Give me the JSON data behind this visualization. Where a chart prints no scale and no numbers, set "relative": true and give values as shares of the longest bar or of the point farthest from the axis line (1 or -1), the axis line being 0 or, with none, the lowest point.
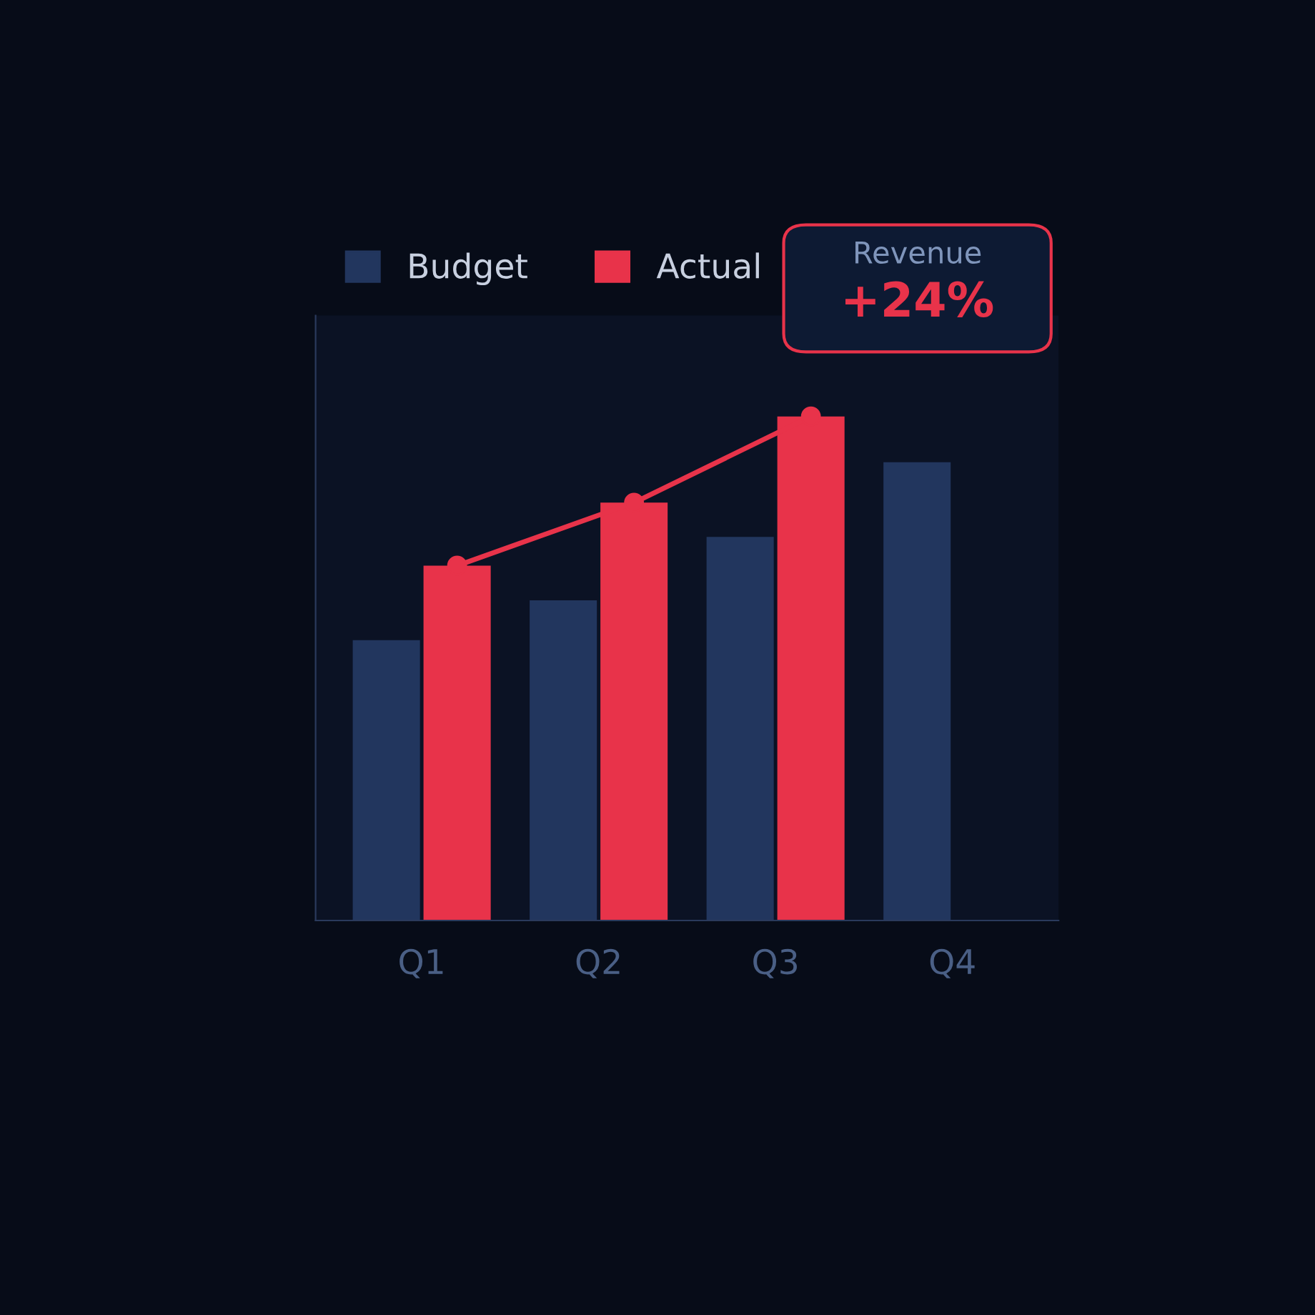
{
  "chart_data": {
    "type": "bar",
    "relative": true,
    "categories": [
      "Q1",
      "Q2",
      "Q3",
      "Q4"
    ],
    "series": [
      {
        "name": "Budget",
        "color": "#22365e",
        "values": [
          0.556,
          0.635,
          0.761,
          0.909
        ]
      },
      {
        "name": "Actual",
        "color": "#e8334a",
        "values": [
          0.704,
          0.829,
          1.0,
          null
        ]
      },
      {
        "type": "line",
        "color": "#e8334a",
        "marker": "circle",
        "values": [
          0.704,
          0.829,
          1.0,
          null
        ]
      }
    ],
    "annotations": [
      "Revenue",
      "+24%"
    ],
    "legend": "top left"
  }
}
